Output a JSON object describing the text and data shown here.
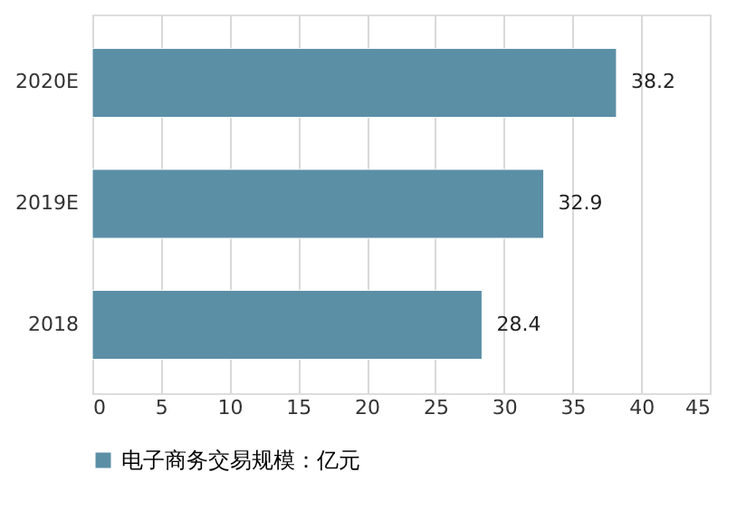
{
  "chart_data": {
    "type": "bar",
    "orientation": "horizontal",
    "categories": [
      "2020E",
      "2019E",
      "2018"
    ],
    "series": [
      {
        "name": "电子商务交易规模：亿元",
        "color": "#5b8fa6",
        "values": [
          38.2,
          32.9,
          28.4
        ]
      }
    ],
    "xlim": [
      0,
      45
    ],
    "xticks": [
      0,
      5,
      10,
      15,
      20,
      25,
      30,
      35,
      40,
      45
    ],
    "grid": "x",
    "legend": "bottom",
    "data_labels": true
  }
}
